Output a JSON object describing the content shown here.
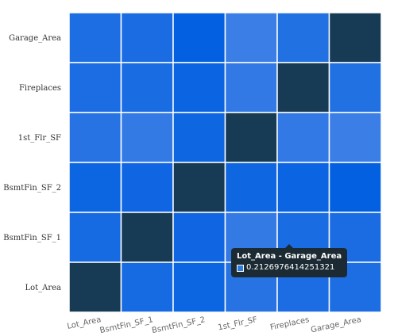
{
  "chart_data": {
    "type": "heatmap",
    "title": "",
    "xlabel": "",
    "ylabel": "",
    "x_categories": [
      "Lot_Area",
      "BsmtFin_SF_1",
      "BsmtFin_SF_2",
      "1st_Flr_SF",
      "Fireplaces",
      "Garage_Area"
    ],
    "y_categories": [
      "Garage_Area",
      "Fireplaces",
      "1st_Flr_SF",
      "BsmtFin_SF_2",
      "BsmtFin_SF_1",
      "Lot_Area"
    ],
    "values": [
      [
        0.21,
        0.19,
        -0.02,
        0.48,
        0.26,
        1.0
      ],
      [
        0.2,
        0.18,
        0.05,
        0.4,
        1.0,
        0.26
      ],
      [
        0.3,
        0.42,
        0.08,
        1.0,
        0.4,
        0.48
      ],
      [
        0.06,
        0.09,
        1.0,
        0.08,
        0.05,
        -0.02
      ],
      [
        0.15,
        1.0,
        0.09,
        0.42,
        0.18,
        0.19
      ],
      [
        1.0,
        0.15,
        0.06,
        0.3,
        0.2,
        0.21
      ]
    ],
    "color_scale": {
      "low": "#005ee0",
      "high": "#3d7fe6",
      "peak": "#173a55"
    },
    "grid": true,
    "legend": "none"
  },
  "tooltip": {
    "title": "Lot_Area - Garage_Area",
    "value": "0.2126976414251321",
    "swatch_color": "#2f7de1"
  }
}
